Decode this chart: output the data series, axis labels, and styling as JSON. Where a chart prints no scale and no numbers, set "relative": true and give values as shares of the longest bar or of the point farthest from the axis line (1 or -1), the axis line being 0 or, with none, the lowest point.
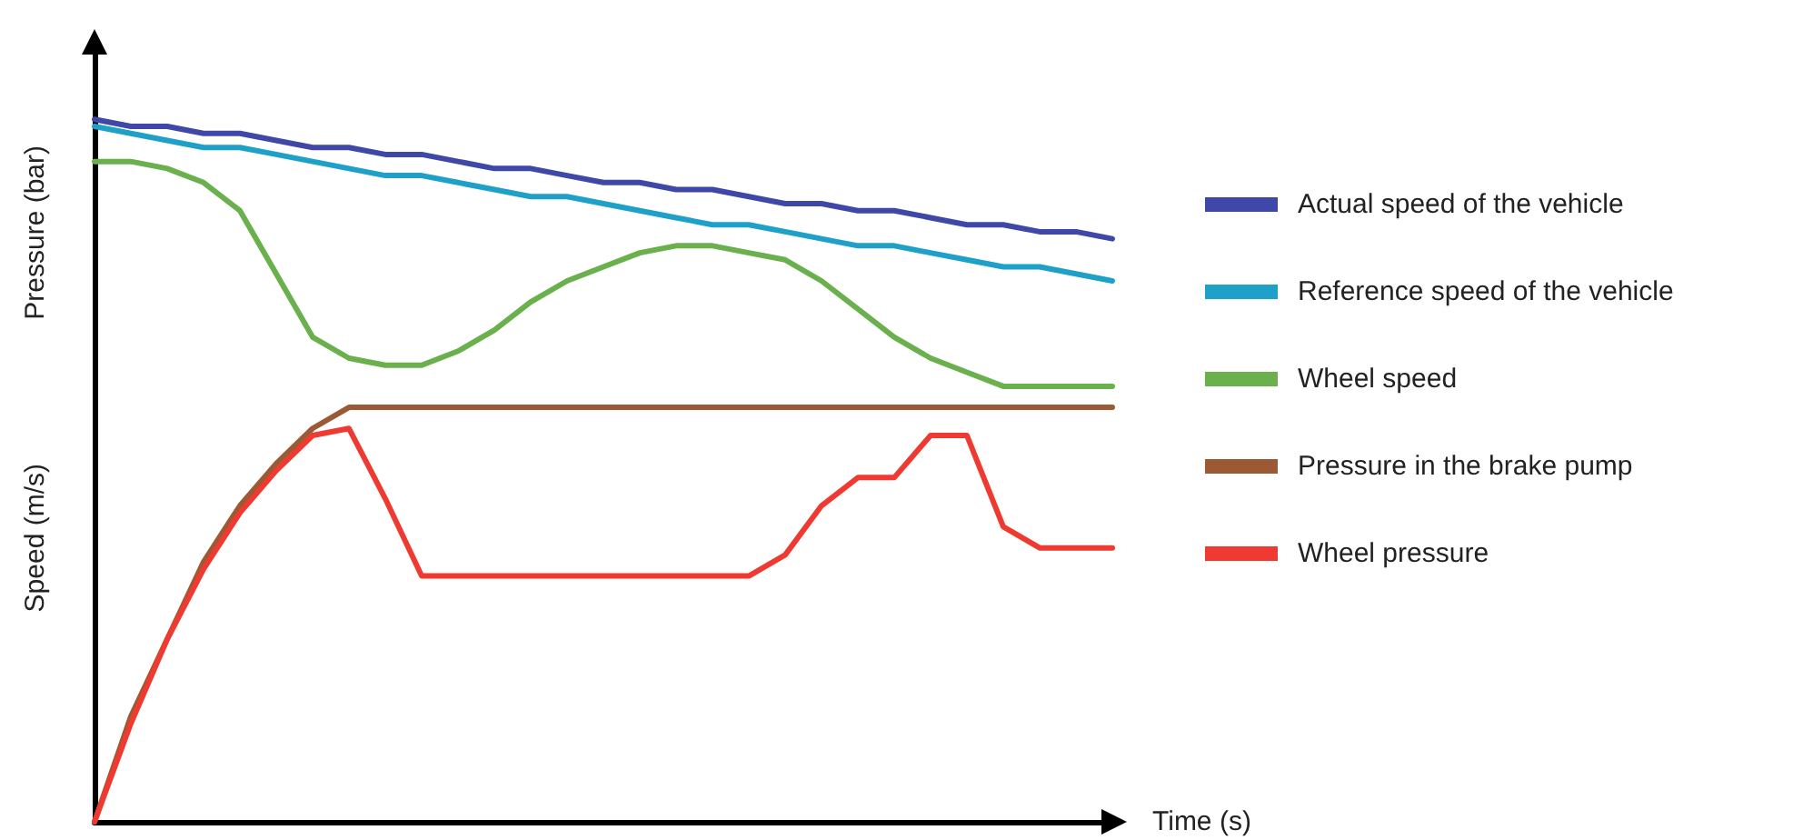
{
  "chart_data": {
    "type": "line",
    "relative": true,
    "xlabel": "Time (s)",
    "ylabel": "Speed (m/s)",
    "annotations": [
      "Pressure (bar)"
    ],
    "legend": "right",
    "marker": "none",
    "line_style": "solid",
    "grid": false,
    "categories": [
      null,
      null,
      null,
      null,
      null,
      null,
      null,
      null,
      null,
      null,
      null,
      null,
      null,
      null,
      null,
      null,
      null,
      null,
      null,
      null,
      null,
      null,
      null,
      null,
      null,
      null,
      null,
      null,
      null
    ],
    "series": [
      {
        "name": "Actual speed of the vehicle",
        "color": "#3f48a8",
        "values": [
          1.0,
          0.99,
          0.99,
          0.98,
          0.98,
          0.97,
          0.96,
          0.96,
          0.95,
          0.95,
          0.94,
          0.93,
          0.93,
          0.92,
          0.91,
          0.91,
          0.9,
          0.9,
          0.89,
          0.88,
          0.88,
          0.87,
          0.87,
          0.86,
          0.85,
          0.85,
          0.84,
          0.84,
          0.83
        ]
      },
      {
        "name": "Reference speed of the vehicle",
        "color": "#1fa0c8",
        "values": [
          0.99,
          0.98,
          0.97,
          0.96,
          0.96,
          0.95,
          0.94,
          0.93,
          0.92,
          0.92,
          0.91,
          0.9,
          0.89,
          0.89,
          0.88,
          0.87,
          0.86,
          0.85,
          0.85,
          0.84,
          0.83,
          0.82,
          0.82,
          0.81,
          0.8,
          0.79,
          0.79,
          0.78,
          0.77
        ]
      },
      {
        "name": "Wheel speed",
        "color": "#6ab04c",
        "values": [
          0.94,
          0.94,
          0.93,
          0.91,
          0.87,
          0.78,
          0.69,
          0.66,
          0.65,
          0.65,
          0.67,
          0.7,
          0.74,
          0.77,
          0.79,
          0.81,
          0.82,
          0.82,
          0.81,
          0.8,
          0.77,
          0.73,
          0.69,
          0.66,
          0.64,
          0.62,
          0.62,
          0.62,
          0.62
        ]
      },
      {
        "name": "Pressure in the brake pump",
        "color": "#9c5a34",
        "values": [
          0,
          0.15,
          0.26,
          0.37,
          0.45,
          0.51,
          0.56,
          0.59,
          0.59,
          0.59,
          0.59,
          0.59,
          0.59,
          0.59,
          0.59,
          0.59,
          0.59,
          0.59,
          0.59,
          0.59,
          0.59,
          0.59,
          0.59,
          0.59,
          0.59,
          0.59,
          0.59,
          0.59,
          0.59
        ]
      },
      {
        "name": "Wheel pressure",
        "color": "#ee3a30",
        "values": [
          0,
          0.14,
          0.26,
          0.36,
          0.44,
          0.5,
          0.55,
          0.56,
          0.46,
          0.35,
          0.35,
          0.35,
          0.35,
          0.35,
          0.35,
          0.35,
          0.35,
          0.35,
          0.35,
          0.38,
          0.45,
          0.49,
          0.49,
          0.55,
          0.55,
          0.42,
          0.39,
          0.39,
          0.39
        ]
      }
    ]
  }
}
